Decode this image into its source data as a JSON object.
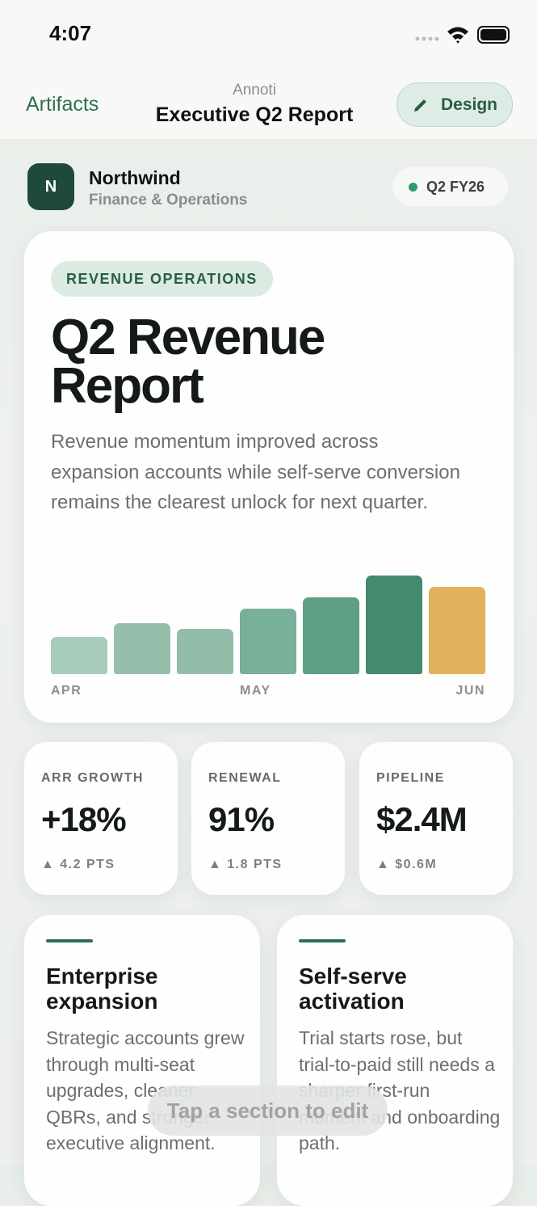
{
  "status_bar": {
    "time": "4:07"
  },
  "nav": {
    "back": "Artifacts",
    "app": "Annoti",
    "title": "Executive Q2 Report",
    "action": "Design"
  },
  "org": {
    "initial": "N",
    "name": "Northwind",
    "department": "Finance & Operations",
    "period": "Q2 FY26"
  },
  "hero": {
    "tag": "REVENUE OPERATIONS",
    "title": "Q2 Revenue Report",
    "summary": "Revenue momentum improved across expansion accounts while self-serve conversion remains the clearest unlock for next quarter.",
    "chart_data": {
      "type": "bar",
      "categories": [
        "APR",
        null,
        null,
        "MAY",
        null,
        null,
        "JUN"
      ],
      "values": [
        46,
        63,
        56,
        81,
        95,
        122,
        108
      ],
      "colors": [
        "#a9cbbc",
        "#94c0ab",
        "#92bea9",
        "#78b099",
        "#5f9f84",
        "#448a6c",
        "#e2b15e"
      ]
    }
  },
  "metrics": [
    {
      "label": "ARR GROWTH",
      "value": "+18%",
      "delta": "▲ 4.2 PTS"
    },
    {
      "label": "RENEWAL",
      "value": "91%",
      "delta": "▲ 1.8 PTS"
    },
    {
      "label": "PIPELINE",
      "value": "$2.4M",
      "delta": "▲ $0.6M"
    }
  ],
  "sections": [
    {
      "title": "Enterprise expansion",
      "body": "Strategic accounts grew through multi-seat upgrades, cleaner QBRs, and stronger executive alignment."
    },
    {
      "title": "Self-serve activation",
      "body": "Trial starts rose, but trial-to-paid still needs a sharper first-run moment and onboarding path."
    }
  ],
  "toast": "Tap a section to edit"
}
